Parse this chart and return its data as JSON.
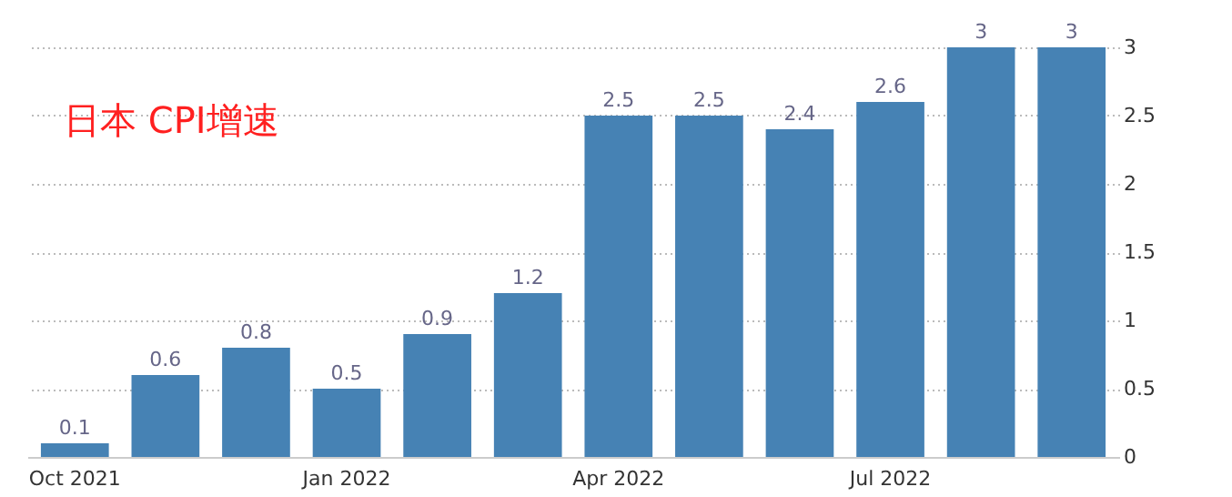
{
  "chart_data": {
    "type": "bar",
    "title": "日本 CPI增速",
    "categories": [
      "Oct 2021",
      null,
      null,
      "Jan 2022",
      null,
      null,
      "Apr 2022",
      null,
      null,
      "Jul 2022",
      null,
      null
    ],
    "values": [
      0.1,
      0.6,
      0.8,
      0.5,
      0.9,
      1.2,
      2.5,
      2.5,
      2.4,
      2.6,
      3,
      3
    ],
    "color": "#4682b4",
    "ylim": [
      0,
      3
    ],
    "yticks": [
      0,
      0.5,
      1,
      1.5,
      2,
      2.5,
      3
    ],
    "grid": "y",
    "data_labels": true
  }
}
